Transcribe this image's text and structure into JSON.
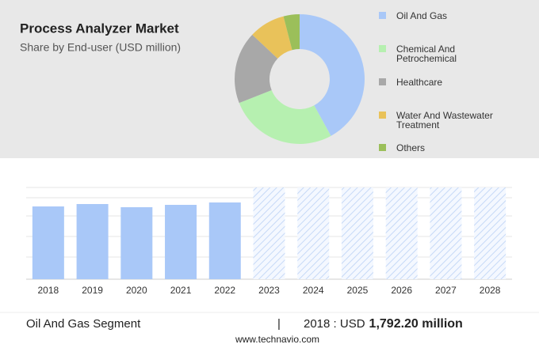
{
  "header": {
    "title": "Process Analyzer Market",
    "subtitle": "Share by End-user (USD million)"
  },
  "chart_data": [
    {
      "type": "pie",
      "categories": [
        "Oil And Gas",
        "Chemical And Petrochemical",
        "Healthcare",
        "Water And Wastewater Treatment",
        "Others"
      ],
      "values": [
        42,
        27,
        18,
        9,
        4
      ],
      "colors": [
        "#a9c8f8",
        "#b6f0b0",
        "#a8a8a8",
        "#e9c25a",
        "#9bbf5a"
      ]
    },
    {
      "type": "bar",
      "categories": [
        "2018",
        "2019",
        "2020",
        "2021",
        "2022",
        "2023",
        "2024",
        "2025",
        "2026",
        "2027",
        "2028"
      ],
      "values": [
        1792.2,
        1851,
        1773,
        1831,
        1890,
        null,
        null,
        null,
        null,
        null,
        null
      ],
      "color": "#a9c8f8",
      "ylim": [
        0,
        2260
      ]
    }
  ],
  "footer": {
    "segment": "Oil And Gas Segment",
    "separator": "|",
    "year_label": "2018 : USD",
    "value": "1,792.20 million",
    "source": "www.technavio.com"
  }
}
